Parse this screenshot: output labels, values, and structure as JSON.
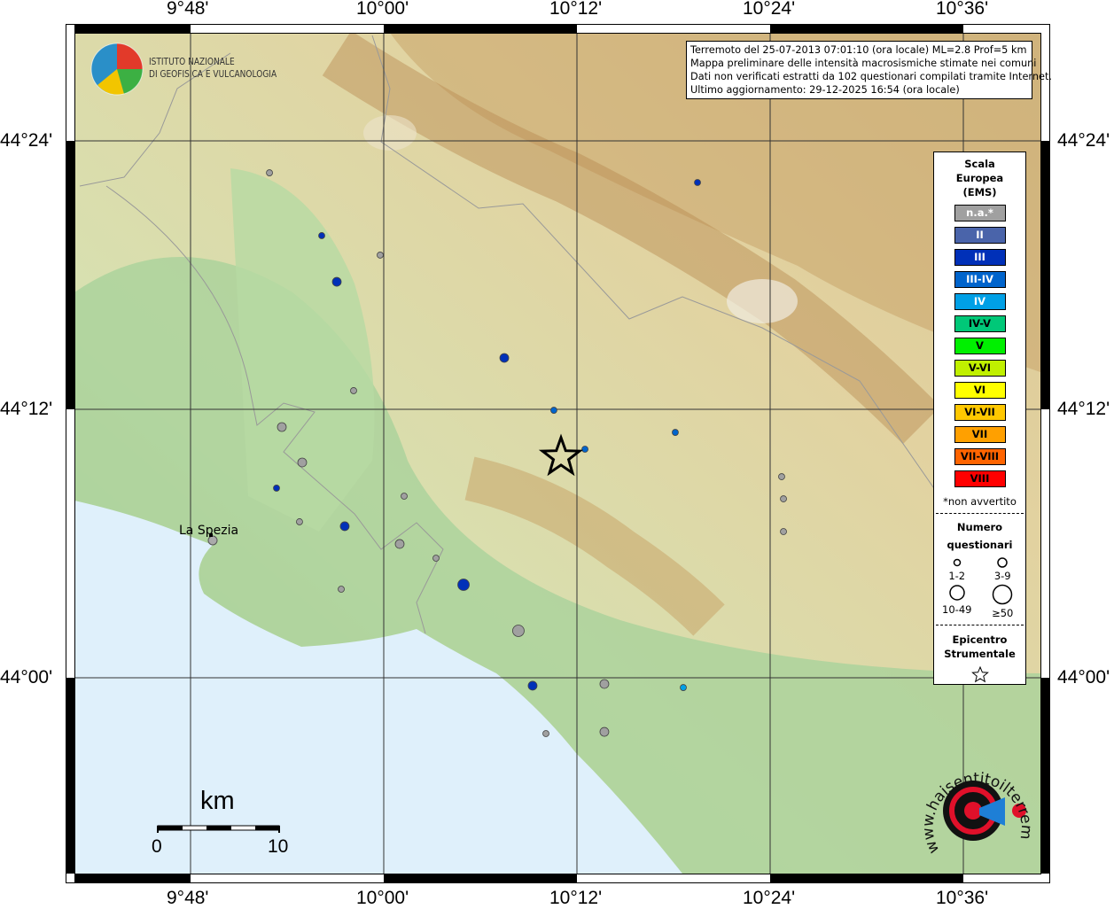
{
  "ticks": {
    "lon": [
      "9°48'",
      "10°00'",
      "10°12'",
      "10°24'",
      "10°36'"
    ],
    "lat": [
      "44°24'",
      "44°12'",
      "44°00'"
    ]
  },
  "info": {
    "line1": "Terremoto del 25-07-2013 07:01:10 (ora locale) ML=2.8 Prof=5 km",
    "line2": "Mappa preliminare delle intensità macrosismiche stimate nei comuni",
    "line3": "Dati non verificati estratti da 102 questionari compilati tramite Internet.",
    "line4": "Ultimo aggiornamento: 29-12-2025 16:54 (ora locale)"
  },
  "logo_ingv": {
    "line1": "ISTITUTO NAZIONALE",
    "line2": "DI GEOFISICA E VULCANOLOGIA"
  },
  "logo_hsit": "www.haisentitoilterremoto.it",
  "city": "La Spezia",
  "scale_bar": {
    "unit": "km",
    "start": "0",
    "end": "10"
  },
  "legend": {
    "title": [
      "Scala",
      "Europea",
      "(EMS)"
    ],
    "classes": [
      {
        "label": "n.a.*",
        "color": "#a0a0a0",
        "text": "#ffffff"
      },
      {
        "label": "II",
        "color": "#4a64aa",
        "text": "#ffffff"
      },
      {
        "label": "III",
        "color": "#0030b8",
        "text": "#ffffff"
      },
      {
        "label": "III-IV",
        "color": "#0064cc",
        "text": "#ffffff"
      },
      {
        "label": "IV",
        "color": "#00a0e6",
        "text": "#ffffff"
      },
      {
        "label": "IV-V",
        "color": "#00c878",
        "text": "#000000"
      },
      {
        "label": "V",
        "color": "#00f000",
        "text": "#000000"
      },
      {
        "label": "V-VI",
        "color": "#c0f000",
        "text": "#000000"
      },
      {
        "label": "VI",
        "color": "#ffff00",
        "text": "#000000"
      },
      {
        "label": "VI-VII",
        "color": "#ffc800",
        "text": "#000000"
      },
      {
        "label": "VII",
        "color": "#ffa000",
        "text": "#000000"
      },
      {
        "label": "VII-VIII",
        "color": "#ff6400",
        "text": "#000000"
      },
      {
        "label": "VIII",
        "color": "#ff0000",
        "text": "#000000"
      }
    ],
    "na_note": "*non avvertito",
    "count_title": [
      "Numero",
      "questionari"
    ],
    "counts": [
      "1-2",
      "3-9",
      "10-49",
      "≥50"
    ],
    "epicenter_title": [
      "Epicentro",
      "Strumentale"
    ]
  },
  "epicenter": {
    "lon": 10.1835,
    "lat": 44.1644
  },
  "points": [
    {
      "lon": 9.8817,
      "lat": 44.3762,
      "ems": "n.a.*",
      "n": "1-2"
    },
    {
      "lon": 9.9358,
      "lat": 44.3294,
      "ems": "III",
      "n": "1-2"
    },
    {
      "lon": 9.9963,
      "lat": 44.3149,
      "ems": "n.a.*",
      "n": "1-2"
    },
    {
      "lon": 9.9514,
      "lat": 44.295,
      "ems": "III",
      "n": "3-9"
    },
    {
      "lon": 10.1248,
      "lat": 44.2383,
      "ems": "III",
      "n": "3-9"
    },
    {
      "lon": 9.9688,
      "lat": 44.2139,
      "ems": "n.a.*",
      "n": "1-2"
    },
    {
      "lon": 10.1761,
      "lat": 44.1993,
      "ems": "III-IV",
      "n": "1-2"
    },
    {
      "lon": 10.2083,
      "lat": 44.1703,
      "ems": "III-IV",
      "n": "1-2"
    },
    {
      "lon": 10.3248,
      "lat": 44.369,
      "ems": "III",
      "n": "1-2"
    },
    {
      "lon": 10.3018,
      "lat": 44.1828,
      "ems": "III-IV",
      "n": "1-2"
    },
    {
      "lon": 9.8945,
      "lat": 44.1868,
      "ems": "n.a.*",
      "n": "3-9"
    },
    {
      "lon": 9.9156,
      "lat": 44.1604,
      "ems": "n.a.*",
      "n": "3-9"
    },
    {
      "lon": 9.889,
      "lat": 44.1413,
      "ems": "III",
      "n": "1-2"
    },
    {
      "lon": 10.0211,
      "lat": 44.1353,
      "ems": "n.a.*",
      "n": "1-2"
    },
    {
      "lon": 9.9128,
      "lat": 44.1162,
      "ems": "n.a.*",
      "n": "1-2"
    },
    {
      "lon": 9.9596,
      "lat": 44.1129,
      "ems": "III",
      "n": "3-9"
    },
    {
      "lon": 10.0165,
      "lat": 44.0997,
      "ems": "n.a.*",
      "n": "3-9"
    },
    {
      "lon": 10.0541,
      "lat": 44.0891,
      "ems": "n.a.*",
      "n": "1-2"
    },
    {
      "lon": 10.0826,
      "lat": 44.0693,
      "ems": "III",
      "n": "10-49"
    },
    {
      "lon": 9.956,
      "lat": 44.066,
      "ems": "n.a.*",
      "n": "1-2"
    },
    {
      "lon": 10.1394,
      "lat": 44.035,
      "ems": "n.a.*",
      "n": "10-49"
    },
    {
      "lon": 10.1541,
      "lat": 43.9941,
      "ems": "III",
      "n": "3-9"
    },
    {
      "lon": 10.2284,
      "lat": 43.9954,
      "ems": "n.a.*",
      "n": "3-9"
    },
    {
      "lon": 10.3101,
      "lat": 43.9927,
      "ems": "IV",
      "n": "1-2"
    },
    {
      "lon": 10.1679,
      "lat": 43.9584,
      "ems": "n.a.*",
      "n": "1-2"
    },
    {
      "lon": 10.2284,
      "lat": 43.9597,
      "ems": "n.a.*",
      "n": "3-9"
    },
    {
      "lon": 10.4119,
      "lat": 44.1498,
      "ems": "n.a.*",
      "n": "1-2"
    },
    {
      "lon": 10.4138,
      "lat": 44.1333,
      "ems": "n.a.*",
      "n": "1-2"
    },
    {
      "lon": 10.4138,
      "lat": 44.1089,
      "ems": "n.a.*",
      "n": "1-2"
    }
  ]
}
